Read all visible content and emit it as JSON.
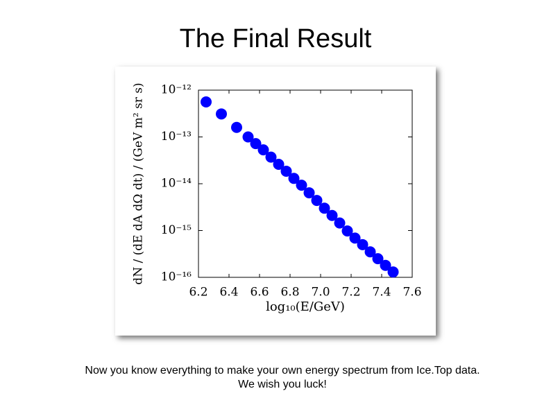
{
  "slide_title": "The Final Result",
  "caption": [
    "Now you know everything to make your own energy spectrum from Ice.Top data.",
    "We wish you luck!"
  ],
  "chart_data": {
    "type": "scatter",
    "x_label": "log₁₀(E/GeV)",
    "y_label": "dN / (dE dA dΩ dt) / (GeV m² sr s)",
    "x": [
      6.25,
      6.35,
      6.45,
      6.525,
      6.575,
      6.625,
      6.675,
      6.725,
      6.775,
      6.825,
      6.875,
      6.925,
      6.975,
      7.025,
      7.075,
      7.125,
      7.175,
      7.225,
      7.275,
      7.325,
      7.375,
      7.425,
      7.475
    ],
    "values": [
      5.6e-13,
      3.1e-13,
      1.6e-13,
      1e-13,
      7.2e-14,
      5.3e-14,
      3.7e-14,
      2.6e-14,
      1.85e-14,
      1.3e-14,
      9.3e-15,
      6.4e-15,
      4.4e-15,
      3e-15,
      2.1e-15,
      1.45e-15,
      9.8e-16,
      6.9e-16,
      5e-16,
      3.5e-16,
      2.5e-16,
      1.8e-16,
      1.3e-16
    ],
    "color": "#0000ff",
    "xlim": [
      6.2,
      7.6
    ],
    "xticks": [
      6.2,
      6.4,
      6.6,
      6.8,
      {
        "value": 7,
        "label": "7.0"
      },
      7.2,
      7.4,
      7.6
    ],
    "ylim": [
      1e-16,
      1e-12
    ],
    "yscale": "log",
    "yticks": [
      {
        "value": 1e-16,
        "label": "10⁻¹⁶"
      },
      {
        "value": 1e-15,
        "label": "10⁻¹⁵"
      },
      {
        "value": 1e-14,
        "label": "10⁻¹⁴"
      },
      {
        "value": 1e-13,
        "label": "10⁻¹³"
      },
      {
        "value": 1e-12,
        "label": "10⁻¹²"
      }
    ],
    "grid": false
  }
}
